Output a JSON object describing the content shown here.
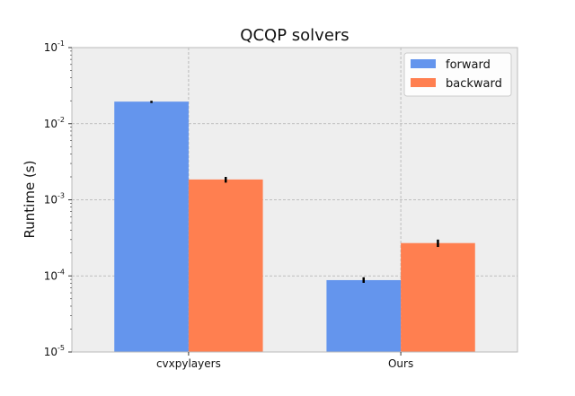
{
  "chart_data": {
    "type": "bar",
    "title": "QCQP solvers",
    "xlabel": "",
    "ylabel": "Runtime (s)",
    "yscale": "log",
    "ylim": [
      1e-05,
      0.1
    ],
    "yticks": [
      {
        "value": 1e-05,
        "base": "10",
        "exp": "-5"
      },
      {
        "value": 0.0001,
        "base": "10",
        "exp": "-4"
      },
      {
        "value": 0.001,
        "base": "10",
        "exp": "-3"
      },
      {
        "value": 0.01,
        "base": "10",
        "exp": "-2"
      },
      {
        "value": 0.1,
        "base": "10",
        "exp": "-1"
      }
    ],
    "categories": [
      "cvxpylayers",
      "Ours"
    ],
    "series": [
      {
        "name": "forward",
        "color": "#6495ED",
        "values": [
          0.0195,
          8.8e-05
        ],
        "err_low": [
          0.0187,
          8.1e-05
        ],
        "err_high": [
          0.02,
          9.6e-05
        ]
      },
      {
        "name": "backward",
        "color": "#FF7F50",
        "values": [
          0.00185,
          0.00027
        ],
        "err_low": [
          0.00168,
          0.00024
        ],
        "err_high": [
          0.002,
          0.0003
        ]
      }
    ],
    "grid": true,
    "legend_position": "top-right",
    "colors": {
      "plot_bg": "#EEEEEE",
      "grid": "#B0B0B0",
      "spine": "#BBBBBB"
    }
  }
}
